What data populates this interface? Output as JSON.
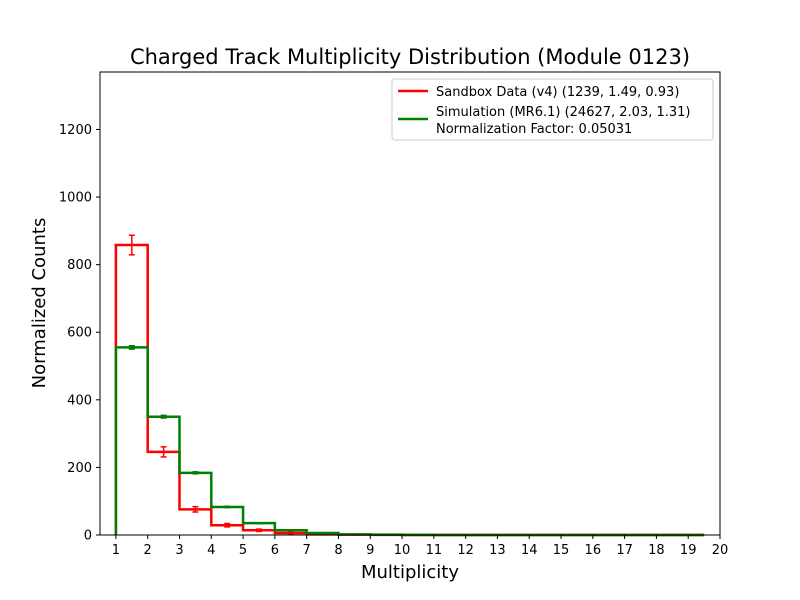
{
  "chart_data": {
    "type": "histogram-step",
    "title": "Charged Track Multiplicity Distribution (Module 0123)",
    "xlabel": "Multiplicity",
    "ylabel": "Normalized Counts",
    "xlim": [
      0.5,
      20
    ],
    "ylim": [
      0,
      1370
    ],
    "x_ticks": [
      1,
      2,
      3,
      4,
      5,
      6,
      7,
      8,
      9,
      10,
      11,
      12,
      13,
      14,
      15,
      16,
      17,
      18,
      19,
      20
    ],
    "y_ticks": [
      0,
      200,
      400,
      600,
      800,
      1000,
      1200
    ],
    "bin_edges": [
      1,
      2,
      3,
      4,
      5,
      6,
      7,
      8,
      9,
      10,
      11,
      12,
      13,
      14,
      15,
      16,
      17,
      18,
      19,
      19.5
    ],
    "legend_position": "top-right",
    "series": [
      {
        "name": "Sandbox Data (v4) (1239, 1.49, 0.93)",
        "color": "#ff0000",
        "values": [
          858,
          246,
          76,
          29,
          14,
          6,
          2,
          1,
          0.5,
          0,
          0,
          0,
          0,
          0,
          0,
          0,
          0,
          0,
          0
        ],
        "errors": [
          29,
          15,
          8,
          5,
          3.5,
          2.5,
          1.5,
          1,
          0.7,
          0,
          0,
          0,
          0,
          0,
          0,
          0,
          0,
          0,
          0
        ]
      },
      {
        "name": "Simulation (MR6.1) (24627, 2.03, 1.31)",
        "color": "#008000",
        "values": [
          555,
          350,
          184,
          83,
          35,
          14,
          6,
          2,
          1,
          0.3,
          0,
          0,
          0,
          0,
          0,
          0,
          0,
          0,
          0
        ],
        "errors": [
          5,
          4,
          3,
          2,
          1.3,
          0.9,
          0.6,
          0.3,
          0.2,
          0.1,
          0,
          0,
          0,
          0,
          0,
          0,
          0,
          0,
          0
        ]
      }
    ],
    "legend_extra": "Normalization Factor: 0.05031"
  }
}
